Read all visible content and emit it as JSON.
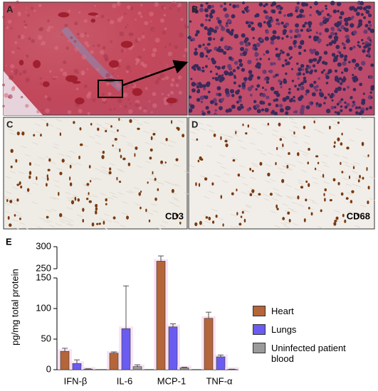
{
  "panels": {
    "a": "A",
    "b": "B",
    "c": "C",
    "d": "D",
    "c_stain": "CD3",
    "d_stain": "CD68",
    "e": "E"
  },
  "chart_data": {
    "type": "bar",
    "y_label": "pg/mg total protein",
    "categories": [
      "IFN-β",
      "IL-6",
      "MCP-1",
      "TNF-α"
    ],
    "series": [
      {
        "name": "Heart",
        "color": "#b5653a",
        "values": [
          30,
          27,
          267,
          84
        ],
        "errors": [
          5,
          2,
          12,
          10
        ]
      },
      {
        "name": "Lungs",
        "color": "#6a5cf0",
        "values": [
          10,
          67,
          70,
          21
        ],
        "errors": [
          6,
          70,
          5,
          3
        ]
      },
      {
        "name": "Uninfected patient blood",
        "color": "#9a9a9a",
        "values": [
          1,
          5,
          3,
          0.5
        ],
        "errors": [
          0.5,
          3,
          1,
          0.3
        ]
      }
    ],
    "ylim": [
      0,
      300
    ],
    "y_break": [
      150,
      250
    ],
    "yticks": [
      0,
      50,
      100,
      150,
      250,
      300
    ]
  }
}
